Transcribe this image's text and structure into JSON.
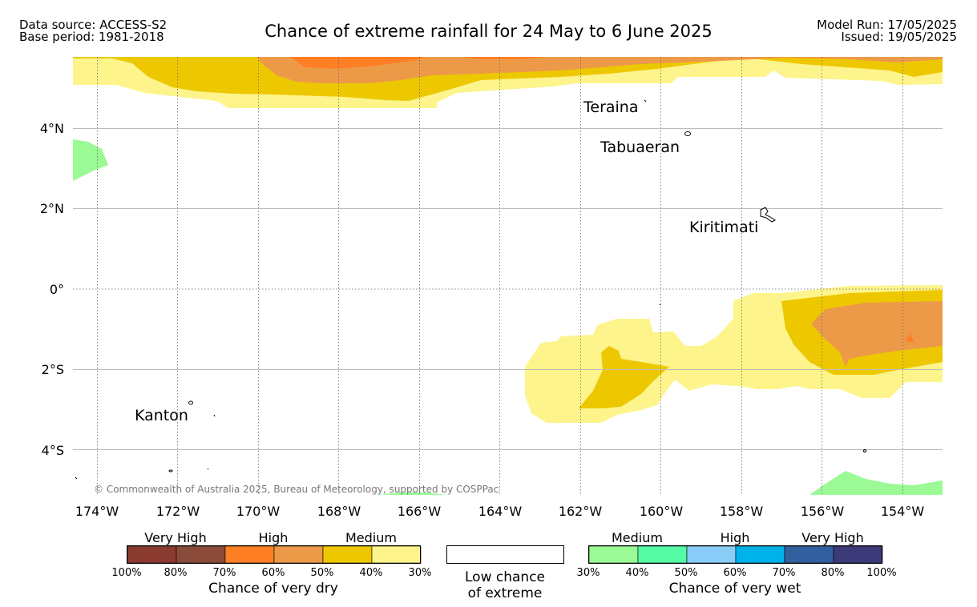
{
  "header": {
    "data_source": "Data source: ACCESS-S2",
    "base_period": "Base period: 1981-2018",
    "title": "Chance of extreme rainfall for 24 May to 6 June 2025",
    "model_run": "Model Run: 17/05/2025",
    "issued": "Issued: 19/05/2025"
  },
  "map": {
    "lon_ticks": [
      "174°W",
      "172°W",
      "170°W",
      "168°W",
      "166°W",
      "164°W",
      "162°W",
      "160°W",
      "158°W",
      "156°W",
      "154°W"
    ],
    "lat_ticks": [
      "4°N",
      "2°N",
      "0°",
      "2°S",
      "4°S"
    ],
    "places": {
      "teraina": "Teraina",
      "tabuaeran": "Tabuaeran",
      "kiritimati": "Kiritimati",
      "kanton": "Kanton"
    },
    "copyright": "© Commonwealth of Australia 2025, Bureau of Meteorology, supported by COSPPac"
  },
  "legend": {
    "dry": {
      "headers": [
        "Very High",
        "High",
        "Medium"
      ],
      "colors": [
        "#8b3a30",
        "#8a4b3a",
        "#ff7f24",
        "#ec9a48",
        "#edc800",
        "#fdf48c"
      ],
      "ticks": [
        "100%",
        "80%",
        "70%",
        "60%",
        "50%",
        "40%",
        "30%"
      ],
      "title": "Chance of very dry"
    },
    "low": {
      "line1": "Low chance",
      "line2": "of extreme",
      "color": "#ffffff"
    },
    "wet": {
      "headers": [
        "Medium",
        "High",
        "Very High"
      ],
      "colors": [
        "#9bfa96",
        "#55fba5",
        "#87cdf7",
        "#00b2ea",
        "#325f9e",
        "#3d3a79"
      ],
      "ticks": [
        "30%",
        "40%",
        "50%",
        "60%",
        "70%",
        "80%",
        "100%"
      ],
      "title": "Chance of very wet"
    }
  }
}
